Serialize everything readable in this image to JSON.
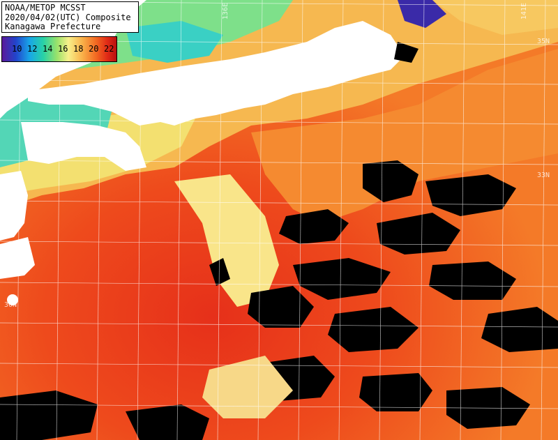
{
  "map": {
    "title_lines": [
      "NOAA/METOP MCSST",
      "2020/04/02(UTC) Composite",
      "Kanagawa Prefecture"
    ],
    "legend_ticks": [
      "10",
      "12",
      "14",
      "16",
      "18",
      "20",
      "22"
    ],
    "gridline_labels": {
      "lon_136": "136E",
      "lon_141": "141E",
      "lat_35": "35N",
      "lat_33": "33N",
      "lat_30": "30N"
    },
    "colors": {
      "land": "#ffffff",
      "cloud": "#000000",
      "grid": "#ffffff"
    }
  }
}
